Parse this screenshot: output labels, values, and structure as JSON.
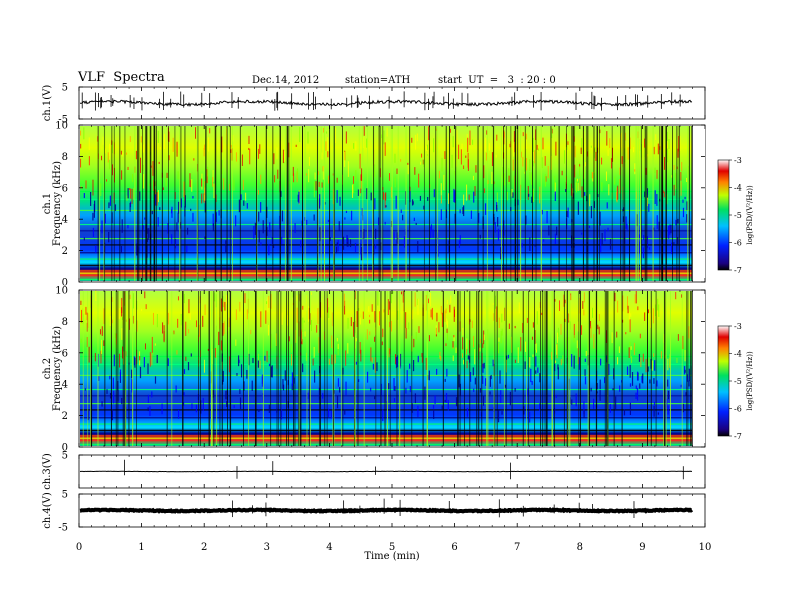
{
  "header": {
    "title": "VLF  Spectra",
    "date": "Dec.14, 2012",
    "station": "station=ATH",
    "start": "start  UT  =   3  : 20 : 0"
  },
  "chart_data": [
    {
      "type": "line",
      "name": "ch1-waveform",
      "ylabel": "ch.1(V)",
      "ylim": [
        -5,
        5
      ],
      "yticks": [
        "5",
        "-5"
      ]
    },
    {
      "type": "heatmap",
      "name": "ch1-spectrogram",
      "ylabel": "ch.1 Frequency (kHz)",
      "ylim": [
        0,
        10
      ],
      "yticks": [
        "0",
        "2",
        "4",
        "6",
        "8",
        "10"
      ],
      "colorbar": {
        "label": "log(PSD/(V²/Hz))",
        "range": [
          -7,
          -3
        ],
        "ticks": [
          "-3",
          "-4",
          "-5",
          "-6",
          "-7"
        ]
      }
    },
    {
      "type": "heatmap",
      "name": "ch2-spectrogram",
      "ylabel": "ch.2 Frequency (kHz)",
      "ylim": [
        0,
        10
      ],
      "yticks": [
        "0",
        "2",
        "4",
        "6",
        "8",
        "10"
      ],
      "colorbar": {
        "label": "log(PSD/(V²/Hz))",
        "range": [
          -7,
          -3
        ],
        "ticks": [
          "-3",
          "-4",
          "-5",
          "-6",
          "-7"
        ]
      }
    },
    {
      "type": "line",
      "name": "ch3-waveform",
      "ylabel": "ch.3(V)",
      "ylim": [
        -5,
        5
      ],
      "yticks": [
        "5"
      ]
    },
    {
      "type": "line",
      "name": "ch4-waveform",
      "ylabel": "ch.4(V)",
      "ylim": [
        -5,
        5
      ],
      "yticks": [
        "5",
        "-5"
      ]
    }
  ],
  "xaxis": {
    "label": "Time  (min)",
    "range": [
      0,
      10
    ],
    "ticks": [
      "0",
      "1",
      "2",
      "3",
      "4",
      "5",
      "6",
      "7",
      "8",
      "9",
      "10"
    ],
    "data_end": 9.8
  }
}
